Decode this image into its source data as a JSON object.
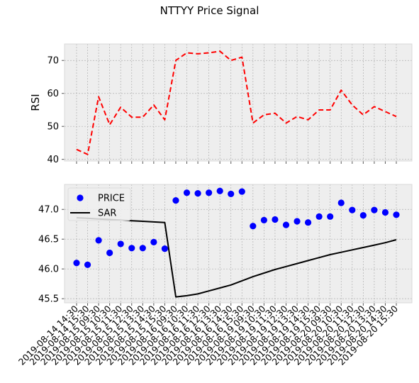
{
  "chart_data": {
    "title": "NTTYY Price Signal",
    "categories": [
      "2019-08-14 14:30",
      "2019-08-14 15:30",
      "2019-08-15 09:30",
      "2019-08-15 10:30",
      "2019-08-15 11:30",
      "2019-08-15 12:30",
      "2019-08-15 13:30",
      "2019-08-15 14:30",
      "2019-08-15 15:30",
      "2019-08-16 09:30",
      "2019-08-16 10:30",
      "2019-08-16 11:30",
      "2019-08-16 12:30",
      "2019-08-16 13:30",
      "2019-08-16 14:30",
      "2019-08-16 15:30",
      "2019-08-19 09:30",
      "2019-08-19 10:30",
      "2019-08-19 11:30",
      "2019-08-19 12:30",
      "2019-08-19 13:30",
      "2019-08-19 14:30",
      "2019-08-19 15:30",
      "2019-08-20 09:30",
      "2019-08-20 10:30",
      "2019-08-20 11:30",
      "2019-08-20 12:30",
      "2019-08-20 13:30",
      "2019-08-20 14:30",
      "2019-08-20 15:30"
    ],
    "charts": [
      {
        "type": "line",
        "ylabel": "RSI",
        "ylim": [
          39.5,
          75
        ],
        "yticks": [
          40,
          50,
          60,
          70
        ],
        "grid": true,
        "series": [
          {
            "color": "#ff0000",
            "style": "dashed",
            "values": [
              43.0,
              41.5,
              59.0,
              50.5,
              55.8,
              52.8,
              52.8,
              56.5,
              52.0,
              70.0,
              72.3,
              72.0,
              72.3,
              72.8,
              70.0,
              71.0,
              51.0,
              53.5,
              54.0,
              51.0,
              53.0,
              52.0,
              55.0,
              55.0,
              61.0,
              56.5,
              53.5,
              56.0,
              54.5,
              53.0
            ]
          }
        ]
      },
      {
        "type": "scatter+line",
        "ylim": [
          45.43,
          47.42
        ],
        "yticks": [
          45.5,
          46.0,
          46.5,
          47.0
        ],
        "grid": true,
        "legend": "top-left",
        "series": [
          {
            "name": "PRICE",
            "type": "scatter",
            "color": "#0000ff",
            "values": [
              46.1,
              46.07,
              46.48,
              46.27,
              46.42,
              46.35,
              46.35,
              46.45,
              46.34,
              47.15,
              47.28,
              47.27,
              47.28,
              47.31,
              47.26,
              47.3,
              46.72,
              46.82,
              46.83,
              46.74,
              46.8,
              46.78,
              46.88,
              46.88,
              47.11,
              46.99,
              46.9,
              46.99,
              46.95,
              46.91
            ]
          },
          {
            "name": "SAR",
            "type": "line",
            "color": "#000000",
            "values": [
              46.86,
              46.85,
              46.84,
              46.83,
              46.82,
              46.81,
              46.8,
              46.79,
              46.78,
              45.53,
              45.55,
              45.58,
              45.63,
              45.68,
              45.73,
              45.8,
              45.87,
              45.93,
              45.99,
              46.04,
              46.09,
              46.14,
              46.19,
              46.24,
              46.28,
              46.32,
              46.36,
              46.4,
              46.44,
              46.49
            ]
          }
        ]
      }
    ]
  }
}
